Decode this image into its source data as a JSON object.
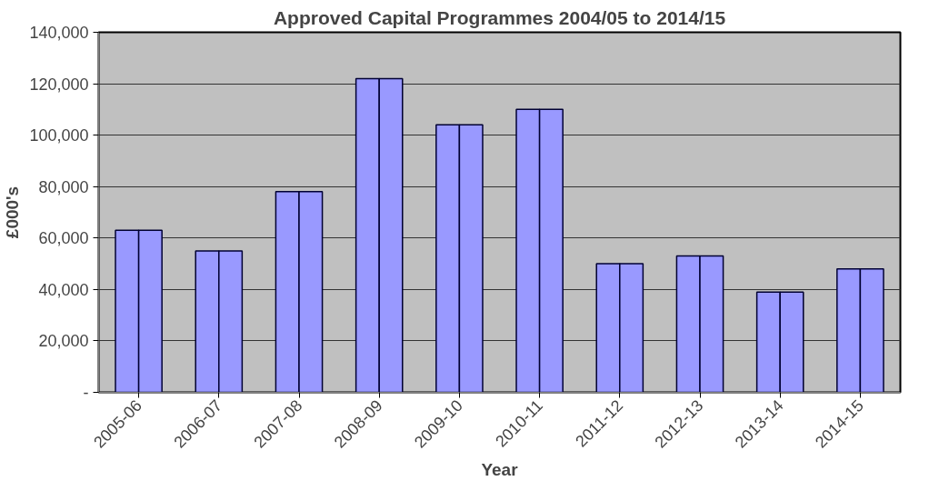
{
  "chart_data": {
    "type": "bar",
    "title": "Approved Capital Programmes 2004/05 to 2014/15",
    "xlabel": "Year",
    "ylabel": "£000's",
    "categories": [
      "2005-06",
      "2006-07",
      "2007-08",
      "2008-09",
      "2009-10",
      "2010-11",
      "2011-12",
      "2012-13",
      "2013-14",
      "2014-15"
    ],
    "series": [
      {
        "color": "#9999ff",
        "values": [
          63000,
          55000,
          78000,
          122000,
          104000,
          110000,
          50000,
          53000,
          39000,
          48000
        ]
      },
      {
        "color": "#9999ff",
        "values": [
          63000,
          55000,
          78000,
          122000,
          104000,
          110000,
          50000,
          53000,
          39000,
          48000
        ]
      }
    ],
    "ylim": [
      0,
      140000
    ],
    "yticks": [
      {
        "value": 0,
        "label": "-"
      },
      {
        "value": 20000,
        "label": "20,000"
      },
      {
        "value": 40000,
        "label": "40,000"
      },
      {
        "value": 60000,
        "label": "60,000"
      },
      {
        "value": 80000,
        "label": "80,000"
      },
      {
        "value": 100000,
        "label": "100,000"
      },
      {
        "value": 120000,
        "label": "120,000"
      },
      {
        "value": 140000,
        "label": "140,000"
      }
    ],
    "grid": "y"
  }
}
